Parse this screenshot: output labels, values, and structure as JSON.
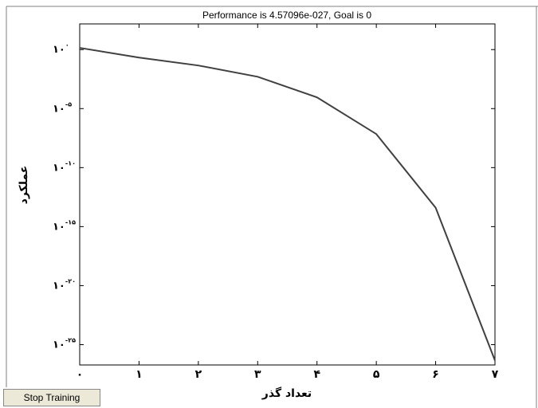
{
  "chart_data": {
    "type": "line",
    "title": "Performance is 4.57096e-027, Goal is 0",
    "xlabel": "تعداد گذر",
    "ylabel": "عملکرد",
    "x": [
      0,
      1,
      2,
      3,
      4,
      5,
      6,
      7
    ],
    "series": [
      {
        "color": "#404040",
        "values": [
          1.4,
          0.21,
          0.045,
          0.005,
          9e-05,
          7e-08,
          4e-14,
          4.57096e-27
        ]
      }
    ],
    "xlim": [
      0,
      7
    ],
    "xticks": [
      {
        "value": 0,
        "label": "۰"
      },
      {
        "value": 1,
        "label": "۱"
      },
      {
        "value": 2,
        "label": "۲"
      },
      {
        "value": 3,
        "label": "۳"
      },
      {
        "value": 4,
        "label": "۴"
      },
      {
        "value": 5,
        "label": "۵"
      },
      {
        "value": 6,
        "label": "۶"
      },
      {
        "value": 7,
        "label": "۷"
      }
    ],
    "yscale": "log",
    "ylim": [
      1.9e-27,
      150
    ],
    "yticks": [
      {
        "value": 1,
        "label": "۱۰",
        "exponent": "۰"
      },
      {
        "value": 1e-05,
        "label": "۱۰",
        "exponent": "-۵"
      },
      {
        "value": 1e-10,
        "label": "۱۰",
        "exponent": "-۱۰"
      },
      {
        "value": 1e-15,
        "label": "۱۰",
        "exponent": "-۱۵"
      },
      {
        "value": 1e-20,
        "label": "۱۰",
        "exponent": "-۲۰"
      },
      {
        "value": 1e-25,
        "label": "۱۰",
        "exponent": "-۲۵"
      }
    ],
    "button": "Stop Training"
  }
}
